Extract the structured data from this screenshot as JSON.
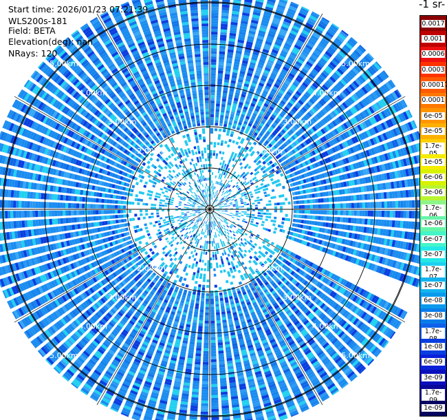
{
  "info": {
    "start_time": "Start time: 2026/01/23 07:21:39",
    "device": "WLS200s-181",
    "field": "Field: BETA",
    "elevation": "Elevation(deg): nan",
    "nrays": "NRays: 120"
  },
  "colorbar": {
    "title": "-1 sr-",
    "labels": [
      "0.0017",
      "0.001",
      "0.0006",
      "0.0003",
      "0.00017",
      "0.0001",
      "6e-05",
      "3e-05",
      "1.7e-05",
      "1e-05",
      "6e-06",
      "3e-06",
      "1.7e-06",
      "1e-06",
      "6e-07",
      "3e-07",
      "1.7e-07",
      "1e-07",
      "6e-08",
      "3e-08",
      "1.7e-08",
      "1e-08",
      "6e-09",
      "3e-09",
      "1.7e-09",
      "1e-09"
    ],
    "colors": [
      "#8b0000",
      "#c00000",
      "#ee1010",
      "#ff3300",
      "#ff5a00",
      "#ff7800",
      "#ff9500",
      "#ffb000",
      "#ffcf00",
      "#f5ec00",
      "#d8f200",
      "#b8f530",
      "#8ef58a",
      "#66f5a8",
      "#44f5c8",
      "#22e8e8",
      "#1cd0f0",
      "#12b4f0",
      "#0a9aec",
      "#0a7cea",
      "#1060ea",
      "#0a3ee0",
      "#0a20d8",
      "#0a10bc",
      "#0a0898",
      "#060660"
    ]
  },
  "chart_data": {
    "type": "heatmap",
    "projection": "polar (PPI scan)",
    "nrays": 120,
    "range_rings_km": [
      1,
      2,
      3,
      4,
      5
    ],
    "ring_labels": [
      "1.00km",
      "2.00km",
      "3.00km",
      "4.00km",
      "5.00km"
    ],
    "max_range_km": 5.4,
    "color_scale": "log",
    "value_range": [
      1e-09,
      0.0017
    ],
    "missing_sector_azimuth_deg": [
      112,
      117
    ],
    "dominant_value": "3e-08 to 1e-07",
    "grid": true,
    "legend_placement": "right"
  }
}
